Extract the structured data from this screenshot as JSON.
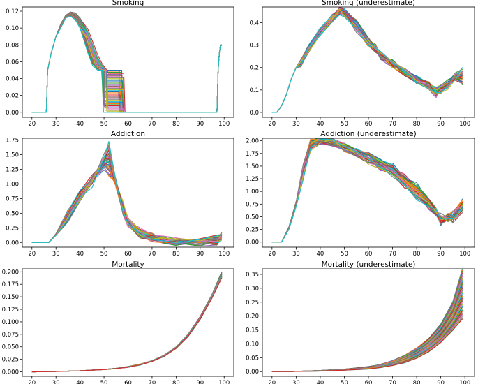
{
  "figure": {
    "palette": [
      "#1f77b4",
      "#ff7f0e",
      "#2ca02c",
      "#d62728",
      "#9467bd",
      "#8c564b",
      "#e377c2",
      "#7f7f7f",
      "#bcbd22",
      "#17becf"
    ],
    "ensemble_size_per_panel": 40,
    "highlight_color": "#d62728"
  },
  "chart_data": [
    {
      "type": "line",
      "title": "Smoking",
      "xlabel": "",
      "ylabel": "",
      "xlim": [
        16,
        104
      ],
      "ylim": [
        -0.006,
        0.125
      ],
      "xticks": [
        20,
        30,
        40,
        50,
        60,
        70,
        80,
        90,
        100
      ],
      "yticks": [
        0.0,
        0.02,
        0.04,
        0.06,
        0.08,
        0.1,
        0.12
      ],
      "ytick_decimals": 2,
      "grid": false,
      "legend": "none",
      "series_note": "many overlapping simulated trajectories",
      "series": [
        {
          "x": [
            20,
            26,
            26.5,
            28,
            30,
            32,
            34,
            36,
            38,
            40,
            42,
            44,
            46,
            48,
            50,
            52,
            54,
            56,
            57,
            57.5,
            60,
            97,
            97.5,
            98,
            98.5,
            99
          ],
          "values": [
            0,
            0,
            0.05,
            0.07,
            0.09,
            0.105,
            0.115,
            0.119,
            0.118,
            0.112,
            0.1,
            0.085,
            0.07,
            0.058,
            0.05,
            0.05,
            0.05,
            0.05,
            0.05,
            0,
            0,
            0,
            0.05,
            0.07,
            0.08,
            0.08
          ]
        },
        {
          "x": [
            20,
            26,
            26.5,
            28,
            30,
            32,
            34,
            36,
            38,
            40,
            42,
            44,
            46,
            48,
            50,
            50.5,
            60,
            97,
            97.5,
            98,
            98.5,
            99
          ],
          "values": [
            0,
            0,
            0.05,
            0.07,
            0.09,
            0.1,
            0.112,
            0.114,
            0.11,
            0.1,
            0.088,
            0.07,
            0.055,
            0.05,
            0.05,
            0,
            0,
            0,
            0.05,
            0.07,
            0.08,
            0.079
          ]
        }
      ]
    },
    {
      "type": "line",
      "title": "Smoking (underestimate)",
      "xlabel": "",
      "ylabel": "",
      "xlim": [
        16,
        104
      ],
      "ylim": [
        -0.022,
        0.47
      ],
      "xticks": [
        20,
        30,
        40,
        50,
        60,
        70,
        80,
        90,
        100
      ],
      "yticks": [
        0.0,
        0.1,
        0.2,
        0.3,
        0.4
      ],
      "ytick_decimals": 1,
      "grid": false,
      "legend": "none",
      "series_note": "many overlapping simulated trajectories",
      "series": [
        {
          "x": [
            20,
            22,
            24,
            26,
            28,
            30,
            32,
            35,
            40,
            45,
            48,
            50,
            55,
            60,
            63,
            65,
            70,
            75,
            80,
            85,
            88,
            90,
            93,
            96,
            99
          ],
          "values": [
            0,
            0,
            0.03,
            0.08,
            0.15,
            0.2,
            0.22,
            0.28,
            0.36,
            0.42,
            0.455,
            0.45,
            0.4,
            0.33,
            0.3,
            0.25,
            0.21,
            0.18,
            0.15,
            0.12,
            0.1,
            0.11,
            0.13,
            0.16,
            0.13
          ]
        },
        {
          "x": [
            20,
            22,
            24,
            26,
            28,
            30,
            32,
            35,
            40,
            45,
            48,
            50,
            55,
            60,
            65,
            70,
            75,
            80,
            85,
            88,
            90,
            93,
            96,
            99
          ],
          "values": [
            0,
            0,
            0.03,
            0.08,
            0.15,
            0.2,
            0.22,
            0.28,
            0.36,
            0.42,
            0.45,
            0.44,
            0.37,
            0.3,
            0.26,
            0.22,
            0.18,
            0.14,
            0.12,
            0.08,
            0.1,
            0.12,
            0.16,
            0.19
          ]
        }
      ]
    },
    {
      "type": "line",
      "title": "Addiction",
      "xlabel": "",
      "ylabel": "",
      "xlim": [
        16,
        104
      ],
      "ylim": [
        -0.08,
        1.78
      ],
      "xticks": [
        20,
        30,
        40,
        50,
        60,
        70,
        80,
        90,
        100
      ],
      "yticks": [
        0.0,
        0.25,
        0.5,
        0.75,
        1.0,
        1.25,
        1.5,
        1.75
      ],
      "ytick_decimals": 2,
      "grid": false,
      "legend": "none",
      "series_note": "many overlapping simulated trajectories",
      "series": [
        {
          "x": [
            20,
            27,
            30,
            35,
            40,
            45,
            50,
            55,
            60,
            65,
            70,
            75,
            80,
            90,
            97,
            99
          ],
          "values": [
            0,
            0,
            0.15,
            0.5,
            0.85,
            1.1,
            1.3,
            1.0,
            0.4,
            0.2,
            0.1,
            0.05,
            0.02,
            0.0,
            0.0,
            0.13
          ]
        },
        {
          "x": [
            20,
            27,
            30,
            35,
            40,
            45,
            52,
            55,
            58,
            60,
            65,
            70,
            80,
            90,
            99
          ],
          "values": [
            0,
            0,
            0.12,
            0.4,
            0.75,
            1.0,
            1.7,
            1.0,
            0.5,
            0.3,
            0.12,
            0.05,
            0.01,
            0.0,
            0.1
          ]
        }
      ]
    },
    {
      "type": "line",
      "title": "Addiction (underestimate)",
      "xlabel": "",
      "ylabel": "",
      "xlim": [
        16,
        104
      ],
      "ylim": [
        -0.1,
        2.05
      ],
      "xticks": [
        20,
        30,
        40,
        50,
        60,
        70,
        80,
        90,
        100
      ],
      "yticks": [
        0.0,
        0.25,
        0.5,
        0.75,
        1.0,
        1.25,
        1.5,
        1.75,
        2.0
      ],
      "ytick_decimals": 2,
      "grid": false,
      "legend": "none",
      "series_note": "many overlapping simulated trajectories",
      "series": [
        {
          "x": [
            20,
            24,
            27,
            30,
            33,
            36,
            40,
            45,
            50,
            55,
            60,
            65,
            70,
            75,
            80,
            85,
            88,
            90,
            93,
            96,
            99
          ],
          "values": [
            0,
            0,
            0.3,
            0.8,
            1.5,
            2.0,
            2.0,
            2.0,
            1.9,
            1.8,
            1.75,
            1.6,
            1.5,
            1.3,
            1.1,
            0.8,
            0.6,
            0.4,
            0.5,
            0.6,
            0.8
          ]
        },
        {
          "x": [
            20,
            24,
            27,
            30,
            33,
            36,
            40,
            45,
            50,
            55,
            60,
            65,
            70,
            75,
            80,
            85,
            90,
            95,
            99
          ],
          "values": [
            0,
            0,
            0.25,
            0.7,
            1.3,
            1.85,
            2.0,
            1.95,
            1.85,
            1.75,
            1.6,
            1.45,
            1.35,
            1.1,
            0.9,
            0.7,
            0.5,
            0.45,
            0.6
          ]
        }
      ]
    },
    {
      "type": "line",
      "title": "Mortality",
      "xlabel": "",
      "ylabel": "",
      "xlim": [
        16,
        104
      ],
      "ylim": [
        -0.009,
        0.206
      ],
      "xticks": [
        20,
        30,
        40,
        50,
        60,
        70,
        80,
        90,
        100
      ],
      "yticks": [
        0.0,
        0.025,
        0.05,
        0.075,
        0.1,
        0.125,
        0.15,
        0.175,
        0.2
      ],
      "ytick_decimals": 3,
      "grid": false,
      "legend": "none",
      "series_note": "many overlapping simulated trajectories; red reference curve",
      "series": [
        {
          "x": [
            20,
            30,
            40,
            50,
            55,
            60,
            65,
            70,
            75,
            80,
            85,
            90,
            95,
            99
          ],
          "values": [
            0.0,
            0.0008,
            0.0022,
            0.005,
            0.007,
            0.01,
            0.015,
            0.022,
            0.033,
            0.05,
            0.075,
            0.11,
            0.155,
            0.2
          ]
        },
        {
          "x": [
            20,
            30,
            40,
            50,
            55,
            60,
            65,
            70,
            75,
            80,
            85,
            90,
            95,
            99
          ],
          "values": [
            0.0,
            0.0007,
            0.002,
            0.0045,
            0.0065,
            0.0095,
            0.014,
            0.021,
            0.031,
            0.047,
            0.071,
            0.105,
            0.148,
            0.188
          ]
        }
      ]
    },
    {
      "type": "line",
      "title": "Mortality (underestimate)",
      "xlabel": "",
      "ylabel": "",
      "xlim": [
        16,
        104
      ],
      "ylim": [
        -0.017,
        0.37
      ],
      "xticks": [
        20,
        30,
        40,
        50,
        60,
        70,
        80,
        90,
        100
      ],
      "yticks": [
        0.0,
        0.05,
        0.1,
        0.15,
        0.2,
        0.25,
        0.3,
        0.35
      ],
      "ytick_decimals": 2,
      "grid": false,
      "legend": "none",
      "series_note": "many overlapping simulated trajectories; red reference curve",
      "series": [
        {
          "x": [
            20,
            30,
            40,
            50,
            60,
            65,
            70,
            75,
            80,
            85,
            90,
            95,
            99
          ],
          "values": [
            0.0,
            0.001,
            0.004,
            0.009,
            0.018,
            0.026,
            0.04,
            0.058,
            0.085,
            0.12,
            0.17,
            0.25,
            0.37
          ]
        },
        {
          "x": [
            20,
            30,
            40,
            50,
            60,
            65,
            70,
            75,
            80,
            85,
            90,
            95,
            99
          ],
          "values": [
            0.0,
            0.0008,
            0.002,
            0.005,
            0.01,
            0.015,
            0.022,
            0.033,
            0.048,
            0.072,
            0.105,
            0.15,
            0.19
          ]
        }
      ]
    }
  ]
}
